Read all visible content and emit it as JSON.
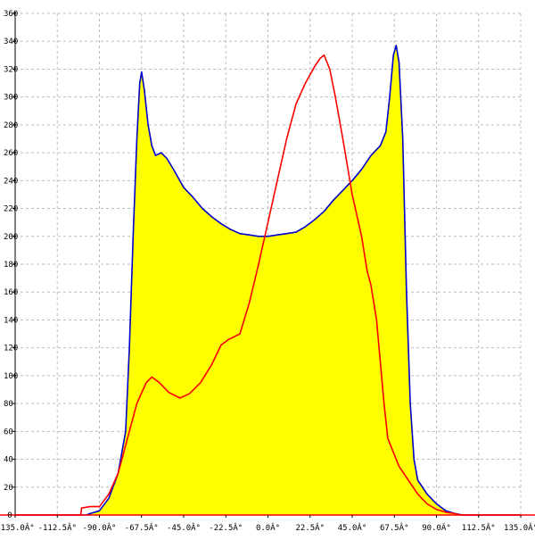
{
  "chart_data": {
    "type": "area",
    "title": "",
    "xlabel": "",
    "ylabel": "",
    "xlim": [
      -135,
      135
    ],
    "ylim": [
      0,
      360
    ],
    "grid": true,
    "x_ticks": [
      -135,
      -112.5,
      -90,
      -67.5,
      -45,
      -22.5,
      0,
      22.5,
      45,
      67.5,
      90,
      112.5,
      135
    ],
    "x_tick_labels": [
      "-135.0Â°",
      "-112.5Â°",
      "-90.0Â°",
      "-67.5Â°",
      "-45.0Â°",
      "-22.5Â°",
      "0.0Â°",
      "22.5Â°",
      "45.0Â°",
      "67.5Â°",
      "90.0Â°",
      "112.5Â°",
      "135.0Â°"
    ],
    "y_ticks": [
      20,
      40,
      60,
      80,
      100,
      120,
      140,
      160,
      180,
      200,
      220,
      240,
      260,
      280,
      300,
      320,
      340,
      360
    ],
    "y_tick_labels": [
      "20",
      "40",
      "60",
      "80",
      "100",
      "120",
      "140",
      "160",
      "180",
      "200",
      "220",
      "240",
      "260",
      "280",
      "300",
      "320",
      "340",
      "360"
    ],
    "series": [
      {
        "color": "#0000cc",
        "fill": "#ffff00",
        "points": [
          [
            -135,
            0
          ],
          [
            -97,
            0
          ],
          [
            -95,
            1
          ],
          [
            -90,
            3
          ],
          [
            -85,
            12
          ],
          [
            -80,
            30
          ],
          [
            -76,
            60
          ],
          [
            -74,
            120
          ],
          [
            -72,
            200
          ],
          [
            -70,
            270
          ],
          [
            -68.5,
            310
          ],
          [
            -67.5,
            318
          ],
          [
            -66,
            305
          ],
          [
            -64,
            280
          ],
          [
            -62,
            265
          ],
          [
            -60,
            258
          ],
          [
            -57,
            260
          ],
          [
            -54,
            256
          ],
          [
            -50,
            247
          ],
          [
            -45,
            235
          ],
          [
            -40,
            228
          ],
          [
            -35,
            220
          ],
          [
            -30,
            214
          ],
          [
            -25,
            209
          ],
          [
            -20,
            205
          ],
          [
            -15,
            202
          ],
          [
            -10,
            201
          ],
          [
            -5,
            200
          ],
          [
            0,
            200
          ],
          [
            5,
            201
          ],
          [
            10,
            202
          ],
          [
            15,
            203
          ],
          [
            20,
            207
          ],
          [
            25,
            212
          ],
          [
            30,
            218
          ],
          [
            35,
            226
          ],
          [
            40,
            233
          ],
          [
            45,
            240
          ],
          [
            50,
            248
          ],
          [
            55,
            258
          ],
          [
            60,
            265
          ],
          [
            63,
            275
          ],
          [
            65,
            300
          ],
          [
            67,
            330
          ],
          [
            68.5,
            337
          ],
          [
            70,
            325
          ],
          [
            72,
            270
          ],
          [
            74,
            160
          ],
          [
            76,
            80
          ],
          [
            78,
            40
          ],
          [
            80,
            25
          ],
          [
            85,
            15
          ],
          [
            90,
            8
          ],
          [
            95,
            3
          ],
          [
            100,
            1
          ],
          [
            104,
            0
          ],
          [
            135,
            0
          ]
        ]
      },
      {
        "color": "#ff0000",
        "fill": "none",
        "points": [
          [
            -135,
            0
          ],
          [
            -100,
            0
          ],
          [
            -99.5,
            5
          ],
          [
            -95,
            6
          ],
          [
            -90,
            6
          ],
          [
            -85,
            15
          ],
          [
            -80,
            30
          ],
          [
            -75,
            55
          ],
          [
            -70,
            80
          ],
          [
            -65,
            95
          ],
          [
            -62,
            99
          ],
          [
            -58,
            95
          ],
          [
            -53,
            88
          ],
          [
            -47,
            84
          ],
          [
            -42,
            87
          ],
          [
            -36,
            95
          ],
          [
            -30,
            108
          ],
          [
            -25,
            122
          ],
          [
            -21,
            126
          ],
          [
            -15,
            130
          ],
          [
            -10,
            152
          ],
          [
            -5,
            180
          ],
          [
            0,
            210
          ],
          [
            5,
            240
          ],
          [
            10,
            270
          ],
          [
            15,
            295
          ],
          [
            20,
            310
          ],
          [
            25,
            322
          ],
          [
            28,
            328
          ],
          [
            30,
            330
          ],
          [
            33,
            320
          ],
          [
            36,
            300
          ],
          [
            40,
            270
          ],
          [
            45,
            230
          ],
          [
            50,
            200
          ],
          [
            53,
            175
          ],
          [
            55,
            165
          ],
          [
            58,
            140
          ],
          [
            60,
            110
          ],
          [
            62,
            80
          ],
          [
            64,
            55
          ],
          [
            67,
            45
          ],
          [
            70,
            35
          ],
          [
            75,
            25
          ],
          [
            80,
            15
          ],
          [
            85,
            8
          ],
          [
            90,
            4
          ],
          [
            95,
            2
          ],
          [
            100,
            1
          ],
          [
            103,
            0
          ],
          [
            135,
            0
          ]
        ]
      }
    ]
  }
}
